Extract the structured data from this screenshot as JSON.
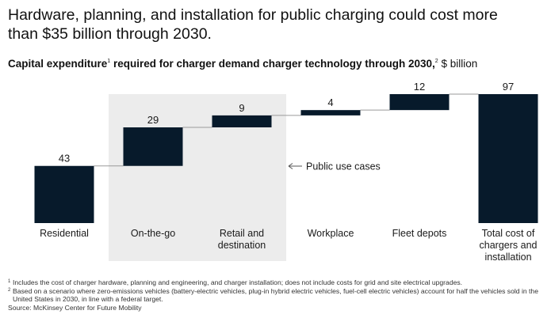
{
  "header": {
    "title": "Hardware, planning, and installation for public charging could cost more than $35 billion through 2030."
  },
  "subtitle": {
    "bold_text": "Capital expenditure",
    "mark1": "1",
    "rest": " required for charger demand charger technology through 2030,",
    "mark2": "2",
    "units": " $ billion"
  },
  "chart_data": {
    "type": "waterfall",
    "title": "Capital expenditure required for charger demand charger technology through 2030, $ billion",
    "categories": [
      "Residential",
      "On-the-go",
      "Retail and destination",
      "Workplace",
      "Fleet depots",
      "Total cost of chargers and installation"
    ],
    "category_labels": [
      [
        "Residential"
      ],
      [
        "On-the-go"
      ],
      [
        "Retail and",
        "destination"
      ],
      [
        "Workplace"
      ],
      [
        "Fleet depots"
      ],
      [
        "Total cost of",
        "chargers and",
        "installation"
      ]
    ],
    "values": [
      43,
      29,
      9,
      4,
      12,
      97
    ],
    "value_labels": [
      "43",
      "29",
      "9",
      "4",
      "12",
      "97"
    ],
    "is_total": [
      false,
      false,
      false,
      false,
      false,
      true
    ],
    "ylim": [
      0,
      97
    ],
    "highlight_group": {
      "label": "Public use cases",
      "categories": [
        "On-the-go",
        "Retail and destination"
      ]
    },
    "colors": {
      "bar": "#071a2b",
      "highlight_bg": "#ececec",
      "connector": "#9a9a9a",
      "annotation": "#555555"
    }
  },
  "footnotes": [
    {
      "mark": "1",
      "text": "Includes the cost of charger hardware, planning and engineering, and charger installation; does not include costs for grid and site electrical upgrades."
    },
    {
      "mark": "2",
      "text": "Based on a scenario where zero-emissions vehicles (battery-electric vehicles, plug-in hybrid electric vehicles, fuel-cell electric vehicles) account for half the vehicles sold in the United States in 2030, in line with a federal target."
    }
  ],
  "source": "Source: McKinsey Center for Future Mobility"
}
